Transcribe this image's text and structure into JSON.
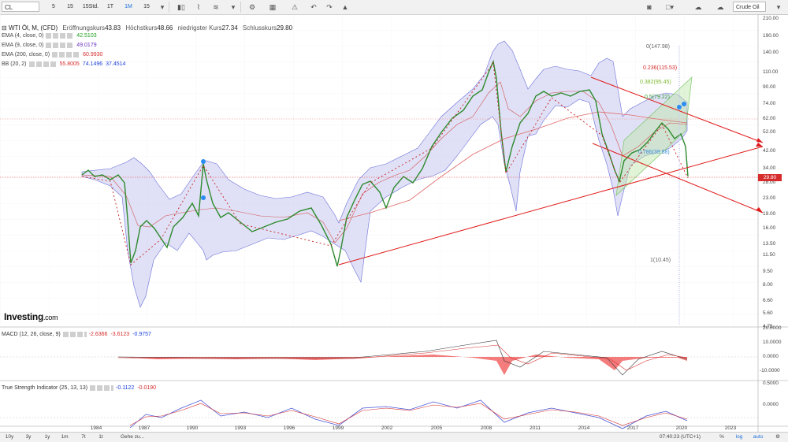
{
  "toolbar": {
    "symbol": "CL",
    "intervals": [
      {
        "label": "5",
        "active": false
      },
      {
        "label": "15",
        "active": false
      },
      {
        "label": "15Std.",
        "active": false
      },
      {
        "label": "1T",
        "active": false
      },
      {
        "label": "1M",
        "active": true
      },
      {
        "label": "15",
        "active": false
      }
    ],
    "instrument": "Crude Oil"
  },
  "chart_title": {
    "name": "WTI Öl, M, (CFD)",
    "open_label": "Eröffnungskurs",
    "open": "43.83",
    "high_label": "Höchstkurs",
    "high": "48.66",
    "low_label": "niedrigster Kurs",
    "low": "27.34",
    "close_label": "Schlusskurs",
    "close": "29.80"
  },
  "indicators": [
    {
      "label": "EMA (4, close, 0)",
      "values": [
        "42.5103"
      ],
      "colors": [
        "#1a9e1a"
      ]
    },
    {
      "label": "EMA (9, close, 0)",
      "values": [
        "49.0179"
      ],
      "colors": [
        "#6b2fbf"
      ]
    },
    {
      "label": "EMA (200, close, 0)",
      "values": [
        "60.9930"
      ],
      "colors": [
        "#d62c2c"
      ]
    },
    {
      "label": "BB (20, 2)",
      "values": [
        "55.8005",
        "74.1496",
        "37.4514"
      ],
      "colors": [
        "#d62c2c",
        "#1a3fd9",
        "#1a3fd9"
      ]
    }
  ],
  "price_axis": [
    "210.00",
    "190.00",
    "140.00",
    "110.00",
    "90.00",
    "74.00",
    "62.00",
    "52.00",
    "42.00",
    "34.00",
    "28.00",
    "23.00",
    "19.00",
    "16.00",
    "13.50",
    "11.50",
    "9.50",
    "8.00",
    "6.60",
    "5.60",
    "4.75"
  ],
  "last_price": "29.80",
  "fib_levels": [
    {
      "label": "0(147.98)",
      "color": "#666666"
    },
    {
      "label": "0.236(115.53)",
      "color": "#d62c2c"
    },
    {
      "label": "0.382(95.45)",
      "color": "#7cb82f"
    },
    {
      "label": "0.5(79.22)",
      "color": "#2f9e2f"
    },
    {
      "label": "0.786(39.88)",
      "color": "#3b8fd9"
    },
    {
      "label": "1(10.45)",
      "color": "#666666"
    }
  ],
  "x_axis": [
    "1984",
    "1987",
    "1990",
    "1993",
    "1996",
    "1999",
    "2002",
    "2005",
    "2008",
    "2011",
    "2014",
    "2017",
    "2020",
    "2023"
  ],
  "logo": {
    "main": "Investing",
    "suffix": ".com"
  },
  "macd": {
    "label": "MACD (12, 26, close, 9)",
    "values": [
      "-2.6366",
      "-3.6123",
      "-0.9757"
    ],
    "colors": [
      "#d62c2c",
      "#d62c2c",
      "#1a3fd9"
    ],
    "axis": [
      "20.0000",
      "10.0000",
      "0.0000",
      "-10.0000"
    ]
  },
  "tsi": {
    "label": "True Strength Indicator (25, 13, 13)",
    "values": [
      "-0.1122",
      "-0.0190"
    ],
    "colors": [
      "#1a3fd9",
      "#d62c2c"
    ],
    "axis": [
      "0.5000",
      "0.0000"
    ]
  },
  "bottom_bar": {
    "ranges": [
      "10y",
      "3y",
      "1y",
      "1m",
      "7t",
      "1t"
    ],
    "goto": "Gehe zu...",
    "time": "07:40:23 (UTC+1)",
    "scale_opts": [
      "%",
      "log",
      "auto"
    ]
  }
}
